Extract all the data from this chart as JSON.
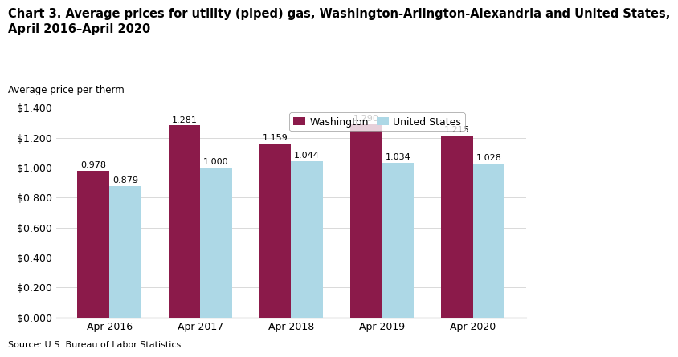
{
  "title_line1": "Chart 3. Average prices for utility (piped) gas, Washington-Arlington-Alexandria and United States,",
  "title_line2": "April 2016–April 2020",
  "ylabel": "Average price per therm",
  "source": "Source: U.S. Bureau of Labor Statistics.",
  "categories": [
    "Apr 2016",
    "Apr 2017",
    "Apr 2018",
    "Apr 2019",
    "Apr 2020"
  ],
  "washington": [
    0.978,
    1.281,
    1.159,
    1.29,
    1.215
  ],
  "us": [
    0.879,
    1.0,
    1.044,
    1.034,
    1.028
  ],
  "washington_color": "#8B1A4A",
  "us_color": "#ADD8E6",
  "washington_label": "Washington",
  "us_label": "United States",
  "ylim": [
    0,
    1.4
  ],
  "yticks": [
    0.0,
    0.2,
    0.4,
    0.6,
    0.8,
    1.0,
    1.2,
    1.4
  ],
  "bar_width": 0.35,
  "title_fontsize": 10.5,
  "axis_label_fontsize": 8.5,
  "tick_fontsize": 9,
  "value_fontsize": 8,
  "legend_fontsize": 9,
  "source_fontsize": 8
}
